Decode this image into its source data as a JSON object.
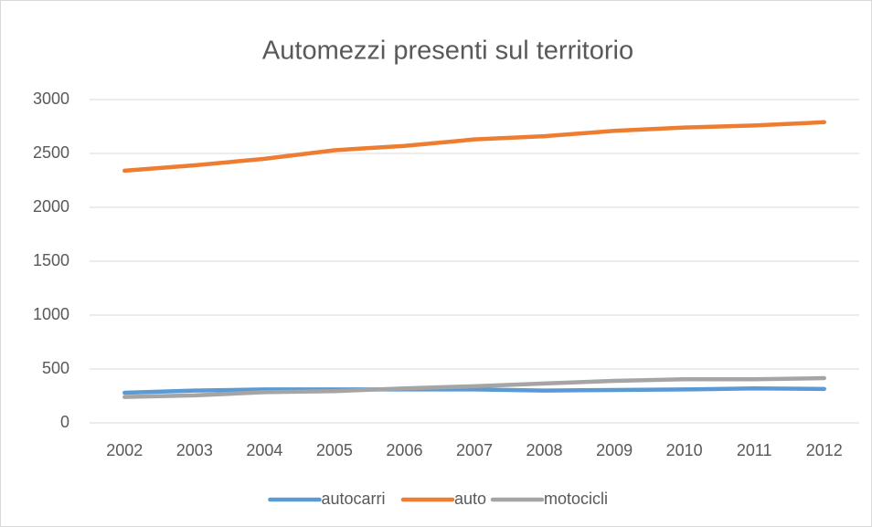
{
  "chart_data": {
    "type": "line",
    "title": "Automezzi presenti sul territorio",
    "categories": [
      "2002",
      "2003",
      "2004",
      "2005",
      "2006",
      "2007",
      "2008",
      "2009",
      "2010",
      "2011",
      "2012"
    ],
    "series": [
      {
        "name": "autocarri",
        "color": "#5b9bd5",
        "values": [
          280,
          300,
          310,
          310,
          310,
          310,
          300,
          305,
          310,
          320,
          315
        ]
      },
      {
        "name": "auto",
        "color": "#ed7d31",
        "values": [
          2340,
          2390,
          2450,
          2530,
          2570,
          2630,
          2660,
          2710,
          2740,
          2760,
          2790
        ]
      },
      {
        "name": "motocicli",
        "color": "#a5a5a5",
        "values": [
          240,
          255,
          285,
          295,
          320,
          340,
          365,
          390,
          405,
          405,
          415
        ]
      }
    ],
    "ylim": [
      0,
      3000
    ],
    "yticks": [
      0,
      500,
      1000,
      1500,
      2000,
      2500,
      3000
    ],
    "grid": true,
    "legend": "bottom"
  }
}
